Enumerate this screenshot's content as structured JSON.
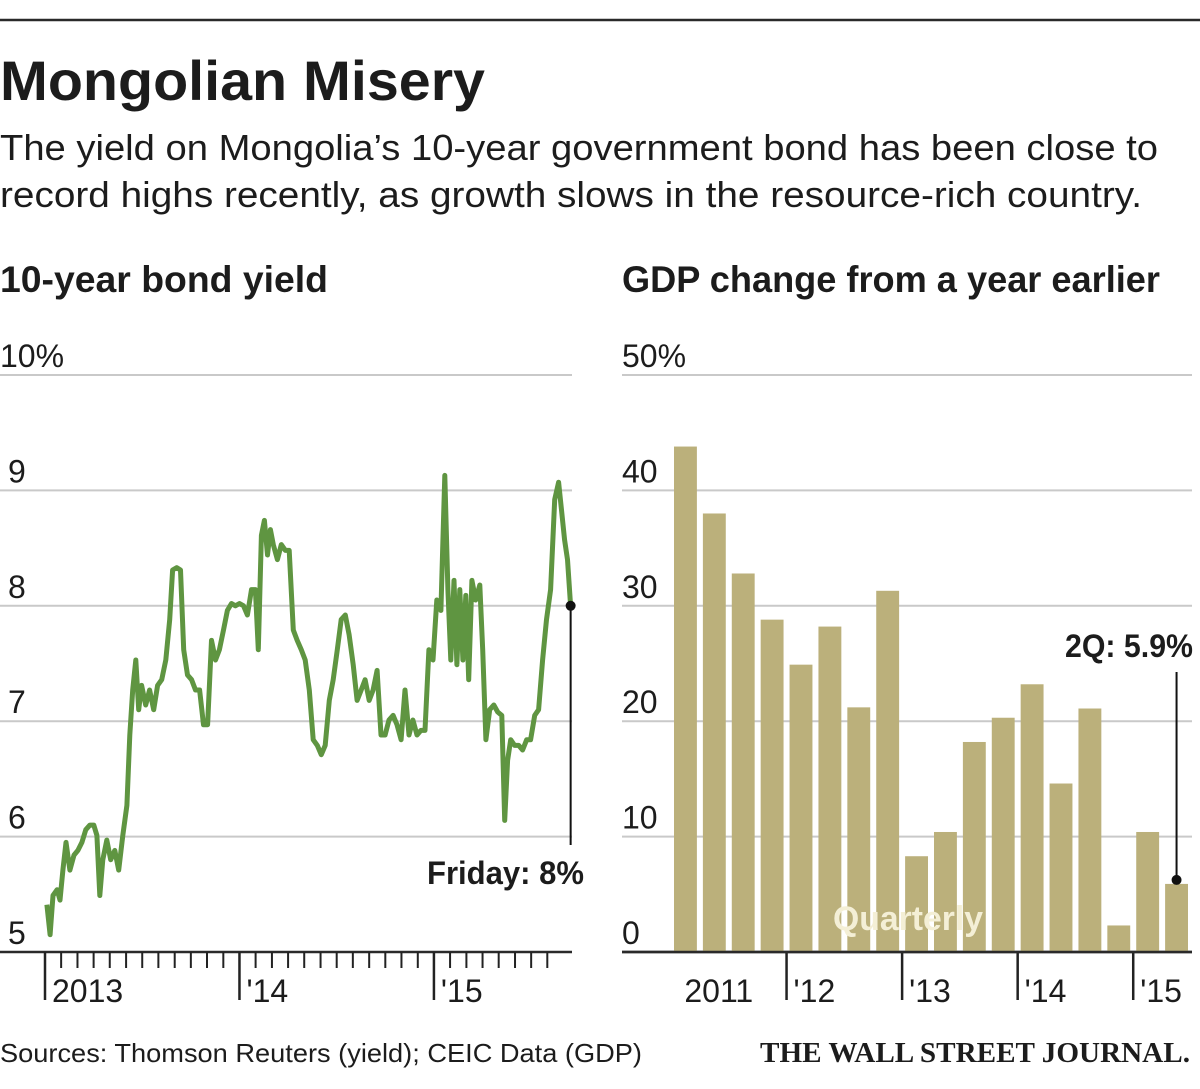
{
  "title": "Mongolian Misery",
  "subtitle": [
    "The yield on Mongolia’s 10-year government bond has been close to",
    "record highs recently, as growth slows in the resource-rich country."
  ],
  "source": "Sources: Thomson Reuters (yield); CEIC Data (GDP)",
  "publisher": "THE WALL STREET JOURNAL.",
  "chart_data": [
    {
      "type": "line",
      "title": "10-year bond yield",
      "color": "#5f9541",
      "x": [
        2013.01,
        2013.026,
        2013.041,
        2013.062,
        2013.077,
        2013.092,
        2013.108,
        2013.128,
        2013.149,
        2013.169,
        2013.19,
        2013.21,
        2013.231,
        2013.251,
        2013.267,
        2013.282,
        2013.297,
        2013.318,
        2013.338,
        2013.359,
        2013.379,
        2013.4,
        2013.421,
        2013.436,
        2013.451,
        2013.467,
        2013.482,
        2013.497,
        2013.518,
        2013.538,
        2013.559,
        2013.579,
        2013.6,
        2013.621,
        2013.641,
        2013.656,
        2013.677,
        2013.697,
        2013.713,
        2013.733,
        2013.754,
        2013.774,
        2013.795,
        2013.815,
        2013.836,
        2013.856,
        2013.877,
        2013.897,
        2013.918,
        2013.938,
        2013.959,
        2013.979,
        2014.0,
        2014.021,
        2014.041,
        2014.062,
        2014.082,
        2014.097,
        2014.113,
        2014.128,
        2014.144,
        2014.159,
        2014.174,
        2014.195,
        2014.215,
        2014.236,
        2014.256,
        2014.277,
        2014.297,
        2014.318,
        2014.338,
        2014.359,
        2014.379,
        2014.4,
        2014.421,
        2014.441,
        2014.462,
        2014.482,
        2014.503,
        2014.523,
        2014.544,
        2014.564,
        2014.585,
        2014.605,
        2014.626,
        2014.646,
        2014.667,
        2014.687,
        2014.708,
        2014.728,
        2014.749,
        2014.769,
        2014.79,
        2014.81,
        2014.831,
        2014.851,
        2014.872,
        2014.892,
        2014.913,
        2014.933,
        2014.954,
        2014.974,
        2014.995,
        2015.015,
        2015.036,
        2015.056,
        2015.072,
        2015.087,
        2015.103,
        2015.118,
        2015.133,
        2015.149,
        2015.164,
        2015.179,
        2015.195,
        2015.215,
        2015.236,
        2015.251,
        2015.267,
        2015.287,
        2015.308,
        2015.328,
        2015.349,
        2015.364,
        2015.379,
        2015.395,
        2015.415,
        2015.436,
        2015.456,
        2015.477,
        2015.497,
        2015.518,
        2015.538,
        2015.559,
        2015.579,
        2015.6,
        2015.621,
        2015.641,
        2015.656,
        2015.672,
        2015.687,
        2015.703
      ],
      "values": [
        5.41,
        5.15,
        5.49,
        5.54,
        5.45,
        5.71,
        5.95,
        5.71,
        5.84,
        5.88,
        5.95,
        6.06,
        6.1,
        6.1,
        6.01,
        5.49,
        5.8,
        5.97,
        5.8,
        5.88,
        5.71,
        6.01,
        6.27,
        6.88,
        7.27,
        7.53,
        7.1,
        7.31,
        7.14,
        7.27,
        7.1,
        7.31,
        7.36,
        7.53,
        7.88,
        8.31,
        8.33,
        8.31,
        7.62,
        7.4,
        7.36,
        7.27,
        7.27,
        6.97,
        6.97,
        7.7,
        7.53,
        7.62,
        7.79,
        7.96,
        8.02,
        8.0,
        8.02,
        8.0,
        7.92,
        8.14,
        8.14,
        7.62,
        8.61,
        8.74,
        8.44,
        8.66,
        8.53,
        8.4,
        8.53,
        8.48,
        8.48,
        7.79,
        7.7,
        7.62,
        7.53,
        7.27,
        6.84,
        6.79,
        6.71,
        6.79,
        7.18,
        7.36,
        7.62,
        7.88,
        7.92,
        7.75,
        7.49,
        7.18,
        7.27,
        7.36,
        7.18,
        7.27,
        7.44,
        6.88,
        6.88,
        7.01,
        7.05,
        6.97,
        6.84,
        7.27,
        6.88,
        7.01,
        6.88,
        6.92,
        6.92,
        7.62,
        7.53,
        8.05,
        7.96,
        9.13,
        8.14,
        7.53,
        8.22,
        7.49,
        8.14,
        7.53,
        8.09,
        7.36,
        8.22,
        8.05,
        8.18,
        7.62,
        6.84,
        7.1,
        7.14,
        7.08,
        7.05,
        6.14,
        6.66,
        6.84,
        6.79,
        6.79,
        6.75,
        6.84,
        6.84,
        7.05,
        7.1,
        7.53,
        7.88,
        8.14,
        8.92,
        9.07,
        8.83,
        8.57,
        8.4,
        8.0
      ],
      "xlim": [
        2013,
        2015.71
      ],
      "xticks": [
        {
          "value": 2013,
          "label": "2013"
        },
        {
          "value": 2014,
          "label": "'14"
        },
        {
          "value": 2015,
          "label": "'15"
        }
      ],
      "xminor_ticks": [
        2013.083,
        2013.167,
        2013.25,
        2013.333,
        2013.417,
        2013.5,
        2013.583,
        2013.667,
        2013.75,
        2013.833,
        2013.917,
        2014.083,
        2014.167,
        2014.25,
        2014.333,
        2014.417,
        2014.5,
        2014.583,
        2014.667,
        2014.75,
        2014.833,
        2014.917,
        2015.083,
        2015.167,
        2015.25,
        2015.333,
        2015.417,
        2015.5,
        2015.583
      ],
      "ylim": [
        5,
        10
      ],
      "yticks": [
        5,
        6,
        7,
        8,
        9,
        {
          "value": 10,
          "label": "10%"
        }
      ],
      "grid": true,
      "annotation": "Friday: 8%"
    },
    {
      "type": "bar",
      "title": "GDP change from a year earlier",
      "color": "#bbb07b",
      "categories": [
        null,
        null,
        null,
        null,
        null,
        null,
        null,
        null,
        null,
        null,
        null,
        null,
        null,
        null,
        null,
        null,
        null,
        null
      ],
      "year_labels": [
        "2011",
        "'12",
        "'13",
        "'14",
        "'15"
      ],
      "values": [
        43.8,
        38,
        32.8,
        28.8,
        24.9,
        28.2,
        21.2,
        31.3,
        8.3,
        10.4,
        18.2,
        20.3,
        23.2,
        14.6,
        21.1,
        2.3,
        10.4,
        5.9
      ],
      "value_labels": [
        null,
        null,
        null,
        null,
        null,
        null,
        null,
        null,
        null,
        null,
        null,
        null,
        null,
        null,
        null,
        null,
        null,
        "2Q: 5.9%"
      ],
      "ylim": [
        0,
        50
      ],
      "yticks": [
        0,
        10,
        20,
        30,
        40,
        {
          "value": 50,
          "label": "50%"
        }
      ],
      "grid": true,
      "note": "Quarterly"
    }
  ]
}
